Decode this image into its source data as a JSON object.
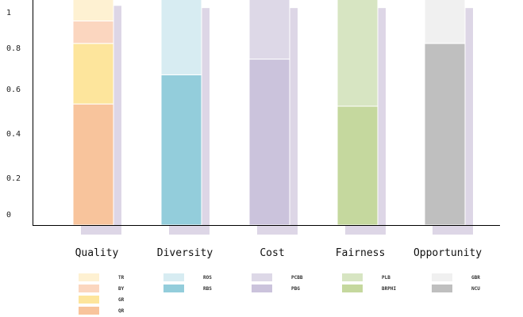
{
  "chart_data": {
    "type": "bar",
    "stacked": true,
    "categories": [
      "Quality",
      "Diversity",
      "Cost",
      "Fairness",
      "Opportunity"
    ],
    "yticks": [
      {
        "value": 0,
        "label": "0"
      },
      {
        "value": 0.2,
        "label": "0.2"
      },
      {
        "value": 0.4,
        "label": "0.4"
      },
      {
        "value": 0.6,
        "label": "0.6"
      },
      {
        "value": 0.8,
        "label": "0.8"
      },
      {
        "value": 1,
        "label": "1"
      }
    ],
    "ylim": [
      0,
      1
    ],
    "shadow_color": "#ddd6e6",
    "stacks": [
      {
        "category": "Quality",
        "segments": [
          {
            "name": "QR",
            "value": 0.54,
            "color": "#f8c49c"
          },
          {
            "name": "GR",
            "value": 0.27,
            "color": "#fde59c"
          },
          {
            "name": "BY",
            "value": 0.1,
            "color": "#fbd6bf"
          },
          {
            "name": "TR",
            "value": 0.11,
            "color": "#fef1d2"
          }
        ]
      },
      {
        "category": "Diversity",
        "segments": [
          {
            "name": "RBS",
            "value": 0.67,
            "color": "#93cddb"
          },
          {
            "name": "ROS",
            "value": 0.34,
            "color": "#d7ecf2"
          }
        ]
      },
      {
        "category": "Cost",
        "segments": [
          {
            "name": "PBG",
            "value": 0.74,
            "color": "#cbc3dc"
          },
          {
            "name": "PCBB",
            "value": 0.27,
            "color": "#ddd8e7"
          }
        ]
      },
      {
        "category": "Fairness",
        "segments": [
          {
            "name": "BRPHI",
            "value": 0.53,
            "color": "#c5d89e"
          },
          {
            "name": "PLB",
            "value": 0.48,
            "color": "#d7e5c2"
          }
        ]
      },
      {
        "category": "Opportunity",
        "segments": [
          {
            "name": "NCU",
            "value": 0.81,
            "color": "#bfbfbf"
          },
          {
            "name": "GBR",
            "value": 0.2,
            "color": "#f0f0f0"
          }
        ]
      }
    ],
    "legend": [
      {
        "category": "Quality",
        "items": [
          {
            "name": "TR",
            "color": "#fef1d2"
          },
          {
            "name": "BY",
            "color": "#fbd6bf"
          },
          {
            "name": "GR",
            "color": "#fde59c"
          },
          {
            "name": "QR",
            "color": "#f8c49c"
          }
        ]
      },
      {
        "category": "Diversity",
        "items": [
          {
            "name": "ROS",
            "color": "#d7ecf2"
          },
          {
            "name": "RBS",
            "color": "#93cddb"
          }
        ]
      },
      {
        "category": "Cost",
        "items": [
          {
            "name": "PCBB",
            "color": "#ddd8e7"
          },
          {
            "name": "PBG",
            "color": "#cbc3dc"
          }
        ]
      },
      {
        "category": "Fairness",
        "items": [
          {
            "name": "PLB",
            "color": "#d7e5c2"
          },
          {
            "name": "BRPHI",
            "color": "#c5d89e"
          }
        ]
      },
      {
        "category": "Opportunity",
        "items": [
          {
            "name": "GBR",
            "color": "#f0f0f0"
          },
          {
            "name": "NCU",
            "color": "#bfbfbf"
          }
        ]
      }
    ]
  }
}
